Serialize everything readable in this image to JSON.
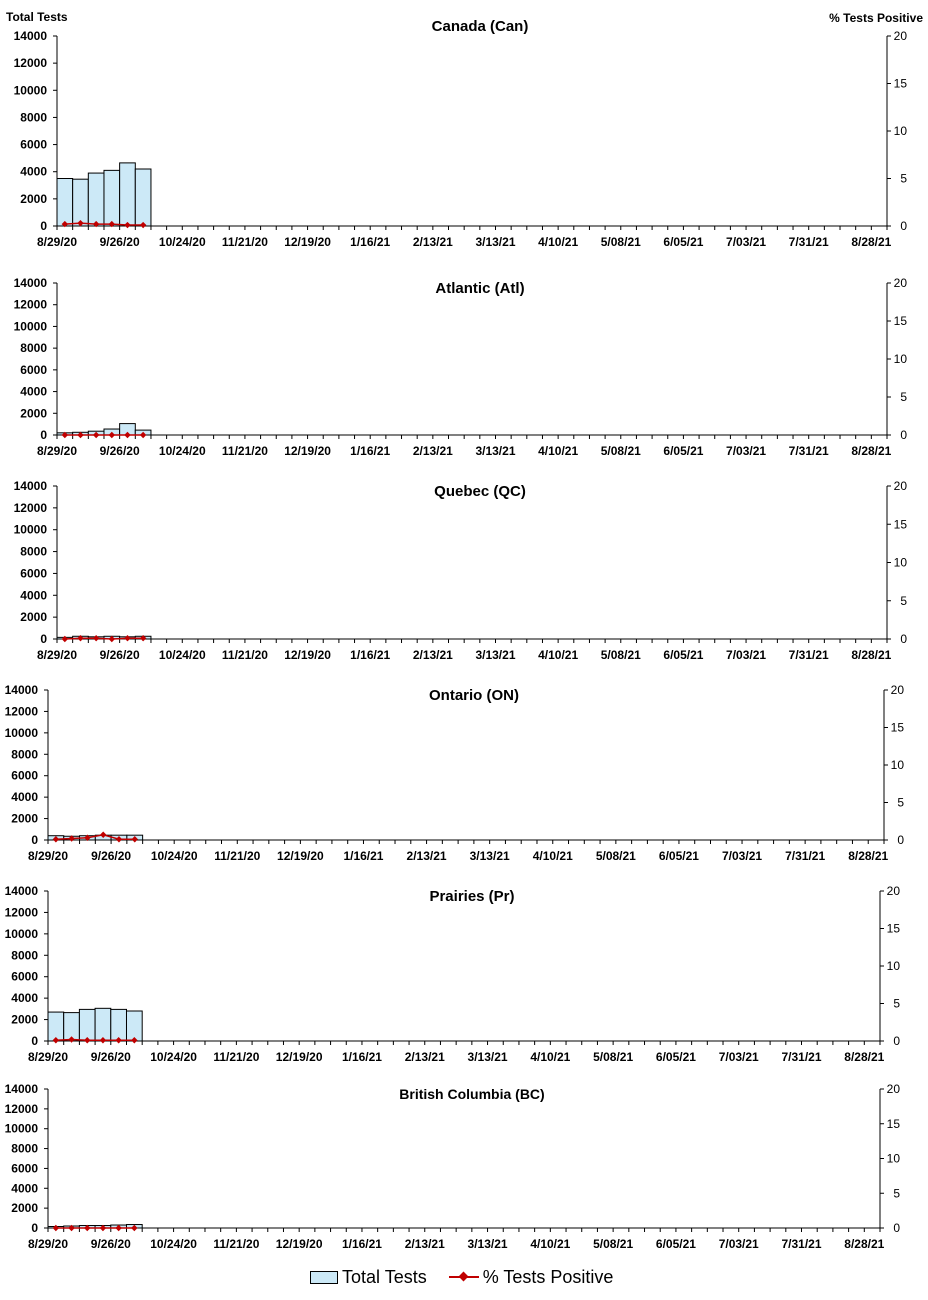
{
  "header": {
    "left_axis_title": "Total Tests",
    "right_axis_title": "% Tests Positive"
  },
  "legend": {
    "bar_label": "Total Tests",
    "line_label": "% Tests Positive"
  },
  "colors": {
    "bar_fill": "#cce9f7",
    "bar_stroke": "#000000",
    "line": "#c00000"
  },
  "chart_data": [
    {
      "type": "bar",
      "title": "Canada (Can)",
      "x_tick_labels": [
        "8/29/20",
        "9/26/20",
        "10/24/20",
        "11/21/20",
        "12/19/20",
        "1/16/21",
        "2/13/21",
        "3/13/21",
        "4/10/21",
        "5/08/21",
        "6/05/21",
        "7/03/21",
        "7/31/21",
        "8/28/21"
      ],
      "y_left_ticks": [
        0,
        2000,
        4000,
        6000,
        8000,
        10000,
        12000,
        14000
      ],
      "y_right_ticks": [
        0,
        5,
        10,
        15,
        20
      ],
      "ylim_left": [
        0,
        14000
      ],
      "ylim_right": [
        0,
        20
      ],
      "series": [
        {
          "name": "Total Tests",
          "type": "bar",
          "values": [
            3500,
            3450,
            3900,
            4100,
            4650,
            4200
          ]
        },
        {
          "name": "% Tests Positive",
          "type": "line",
          "values": [
            0.2,
            0.3,
            0.2,
            0.2,
            0.1,
            0.1
          ]
        }
      ]
    },
    {
      "type": "bar",
      "title": "Atlantic (Atl)",
      "x_tick_labels": [
        "8/29/20",
        "9/26/20",
        "10/24/20",
        "11/21/20",
        "12/19/20",
        "1/16/21",
        "2/13/21",
        "3/13/21",
        "4/10/21",
        "5/08/21",
        "6/05/21",
        "7/03/21",
        "7/31/21",
        "8/28/21"
      ],
      "y_left_ticks": [
        0,
        2000,
        4000,
        6000,
        8000,
        10000,
        12000,
        14000
      ],
      "y_right_ticks": [
        0,
        5,
        10,
        15,
        20
      ],
      "ylim_left": [
        0,
        14000
      ],
      "ylim_right": [
        0,
        20
      ],
      "series": [
        {
          "name": "Total Tests",
          "type": "bar",
          "values": [
            200,
            250,
            350,
            550,
            1050,
            450
          ]
        },
        {
          "name": "% Tests Positive",
          "type": "line",
          "values": [
            0.0,
            0.0,
            0.0,
            0.0,
            0.0,
            0.0
          ]
        }
      ]
    },
    {
      "type": "bar",
      "title": "Quebec (QC)",
      "x_tick_labels": [
        "8/29/20",
        "9/26/20",
        "10/24/20",
        "11/21/20",
        "12/19/20",
        "1/16/21",
        "2/13/21",
        "3/13/21",
        "4/10/21",
        "5/08/21",
        "6/05/21",
        "7/03/21",
        "7/31/21",
        "8/28/21"
      ],
      "y_left_ticks": [
        0,
        2000,
        4000,
        6000,
        8000,
        10000,
        12000,
        14000
      ],
      "y_right_ticks": [
        0,
        5,
        10,
        15,
        20
      ],
      "ylim_left": [
        0,
        14000
      ],
      "ylim_right": [
        0,
        20
      ],
      "series": [
        {
          "name": "Total Tests",
          "type": "bar",
          "values": [
            150,
            250,
            200,
            250,
            200,
            250
          ]
        },
        {
          "name": "% Tests Positive",
          "type": "line",
          "values": [
            0.0,
            0.1,
            0.1,
            0.0,
            0.1,
            0.1
          ]
        }
      ]
    },
    {
      "type": "bar",
      "title": "Ontario (ON)",
      "x_tick_labels": [
        "8/29/20",
        "9/26/20",
        "10/24/20",
        "11/21/20",
        "12/19/20",
        "1/16/21",
        "2/13/21",
        "3/13/21",
        "4/10/21",
        "5/08/21",
        "6/05/21",
        "7/03/21",
        "7/31/21",
        "8/28/21"
      ],
      "y_left_ticks": [
        0,
        2000,
        4000,
        6000,
        8000,
        10000,
        12000,
        14000
      ],
      "y_right_ticks": [
        0,
        5,
        10,
        15,
        20
      ],
      "ylim_left": [
        0,
        14000
      ],
      "ylim_right": [
        0,
        20
      ],
      "series": [
        {
          "name": "Total Tests",
          "type": "bar",
          "values": [
            400,
            350,
            400,
            450,
            450,
            450
          ]
        },
        {
          "name": "% Tests Positive",
          "type": "line",
          "values": [
            0.1,
            0.2,
            0.3,
            0.7,
            0.1,
            0.1
          ]
        }
      ]
    },
    {
      "type": "bar",
      "title": "Prairies (Pr)",
      "x_tick_labels": [
        "8/29/20",
        "9/26/20",
        "10/24/20",
        "11/21/20",
        "12/19/20",
        "1/16/21",
        "2/13/21",
        "3/13/21",
        "4/10/21",
        "5/08/21",
        "6/05/21",
        "7/03/21",
        "7/31/21",
        "8/28/21"
      ],
      "y_left_ticks": [
        0,
        2000,
        4000,
        6000,
        8000,
        10000,
        12000,
        14000
      ],
      "y_right_ticks": [
        0,
        5,
        10,
        15,
        20
      ],
      "ylim_left": [
        0,
        14000
      ],
      "ylim_right": [
        0,
        20
      ],
      "series": [
        {
          "name": "Total Tests",
          "type": "bar",
          "values": [
            2700,
            2650,
            2950,
            3050,
            2950,
            2800
          ]
        },
        {
          "name": "% Tests Positive",
          "type": "line",
          "values": [
            0.1,
            0.2,
            0.1,
            0.1,
            0.1,
            0.1
          ]
        }
      ]
    },
    {
      "type": "bar",
      "title": "British Columbia (BC)",
      "x_tick_labels": [
        "8/29/20",
        "9/26/20",
        "10/24/20",
        "11/21/20",
        "12/19/20",
        "1/16/21",
        "2/13/21",
        "3/13/21",
        "4/10/21",
        "5/08/21",
        "6/05/21",
        "7/03/21",
        "7/31/21",
        "8/28/21"
      ],
      "y_left_ticks": [
        0,
        2000,
        4000,
        6000,
        8000,
        10000,
        12000,
        14000
      ],
      "y_right_ticks": [
        0,
        5,
        10,
        15,
        20
      ],
      "ylim_left": [
        0,
        14000
      ],
      "ylim_right": [
        0,
        20
      ],
      "series": [
        {
          "name": "Total Tests",
          "type": "bar",
          "values": [
            150,
            200,
            250,
            250,
            300,
            350
          ]
        },
        {
          "name": "% Tests Positive",
          "type": "line",
          "values": [
            0.0,
            0.0,
            0.0,
            0.0,
            0.0,
            0.0
          ]
        }
      ]
    }
  ]
}
